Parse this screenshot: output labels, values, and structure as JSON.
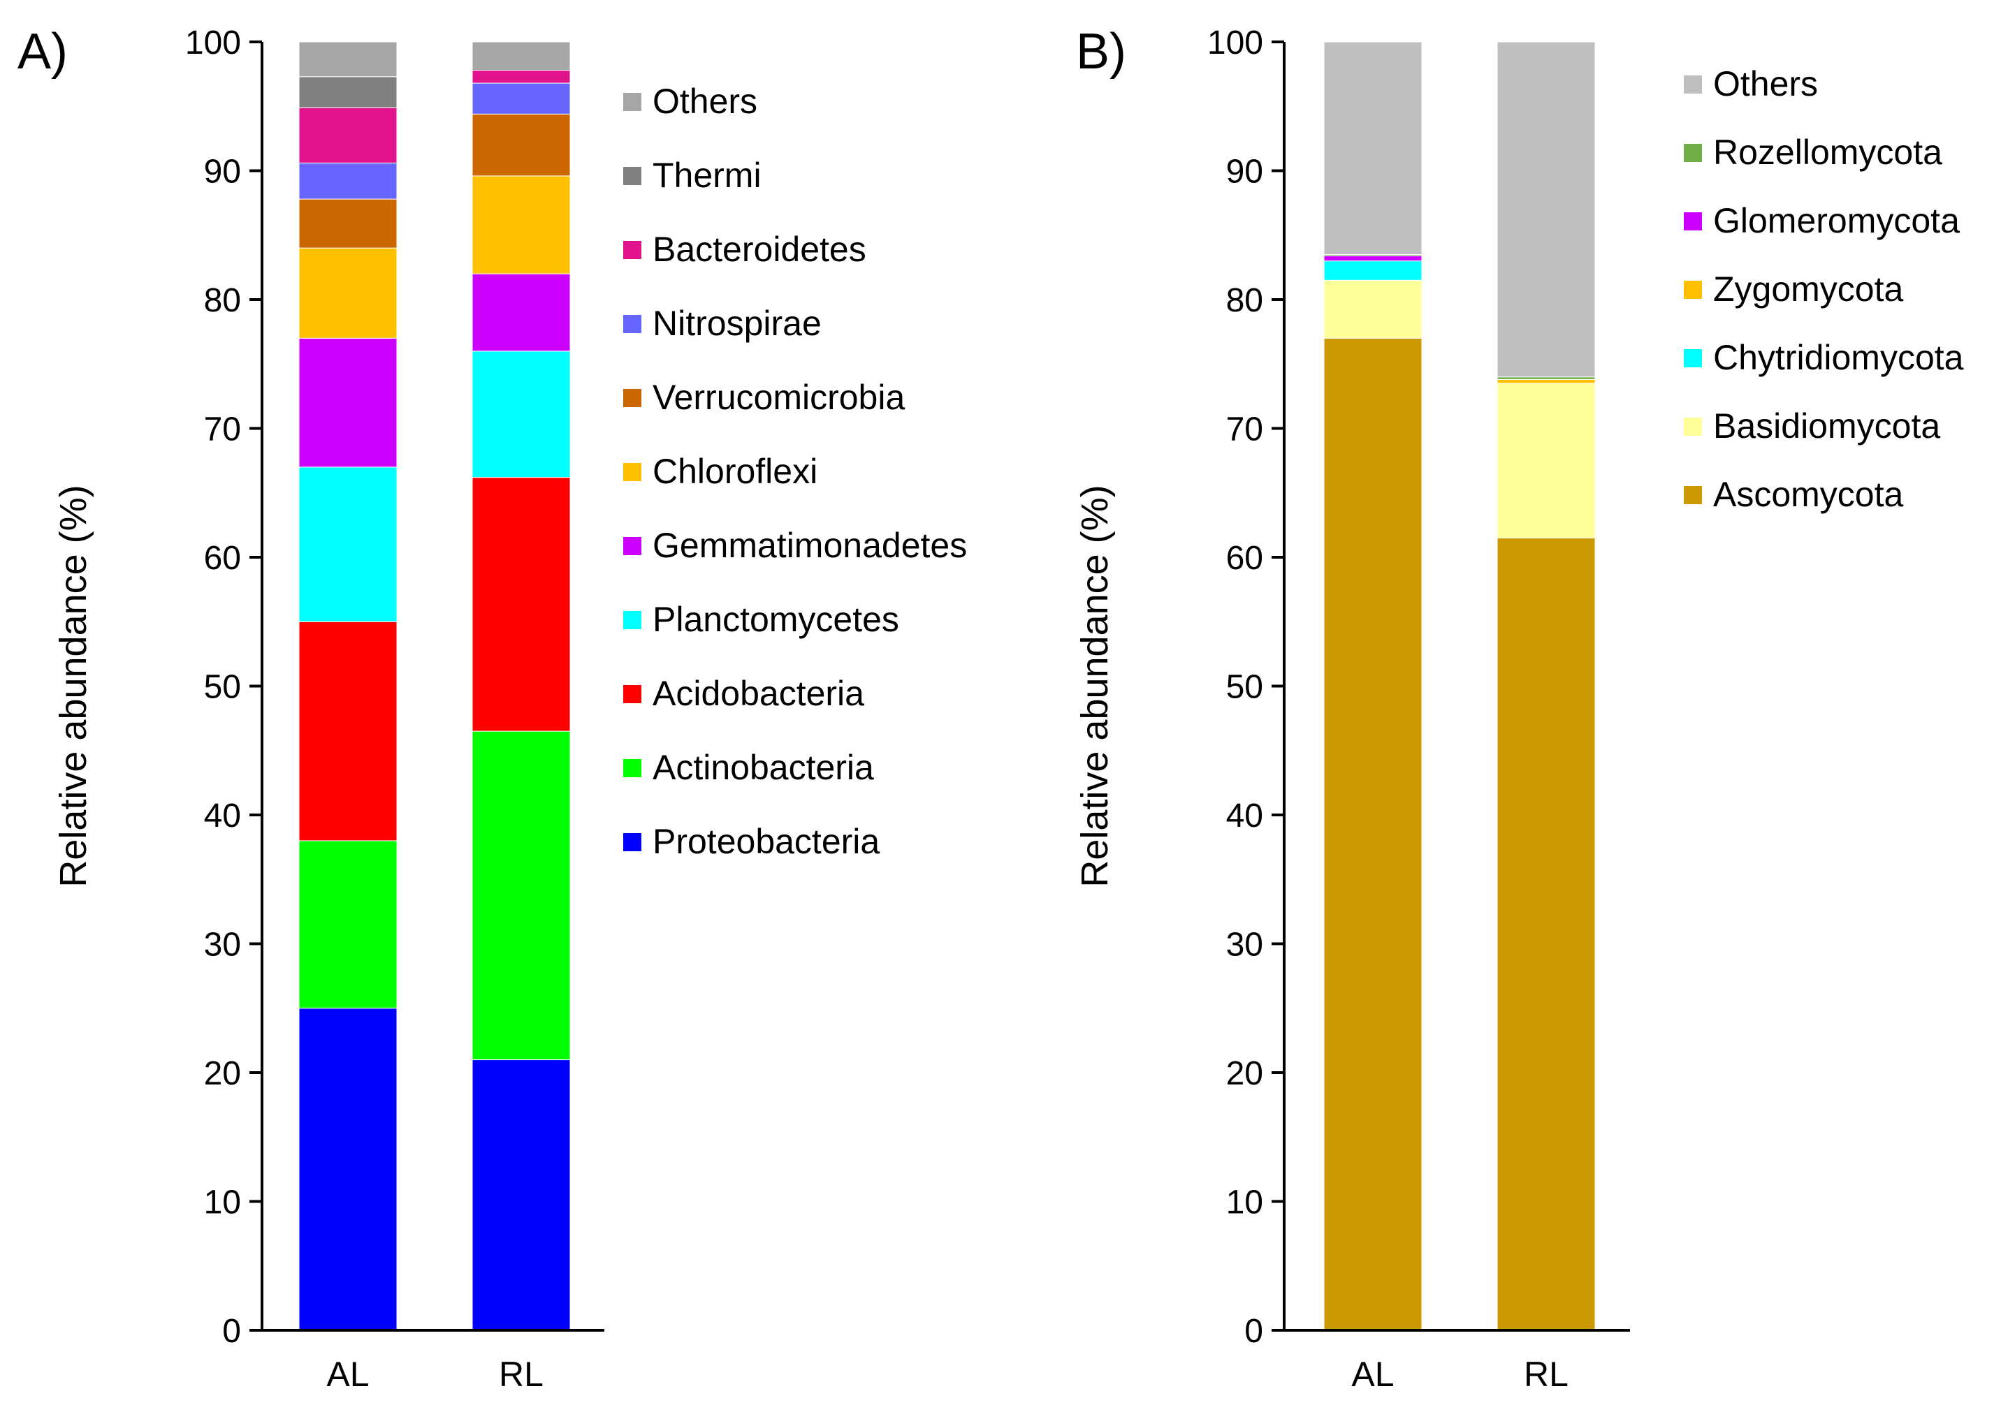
{
  "chart_data": [
    {
      "type": "bar",
      "stacked": true,
      "panel_label": "A)",
      "ylabel": "Relative abundance (%)",
      "xlabel": "",
      "ylim": [
        0,
        100
      ],
      "yticks": [
        "0",
        "10",
        "20",
        "30",
        "40",
        "50",
        "60",
        "70",
        "80",
        "90",
        "100"
      ],
      "categories": [
        "AL",
        "RL"
      ],
      "legend_placement": "right",
      "series": [
        {
          "name": "Proteobacteria",
          "color": "#0000ff",
          "values": [
            25.0,
            21.0
          ]
        },
        {
          "name": "Actinobacteria",
          "color": "#00ff00",
          "values": [
            13.0,
            25.5
          ]
        },
        {
          "name": "Acidobacteria",
          "color": "#ff0000",
          "values": [
            17.0,
            19.7
          ]
        },
        {
          "name": "Planctomycetes",
          "color": "#00ffff",
          "values": [
            12.0,
            9.8
          ]
        },
        {
          "name": "Gemmatimonadetes",
          "color": "#cc00ff",
          "values": [
            10.0,
            6.0
          ]
        },
        {
          "name": "Chloroflexi",
          "color": "#ffc000",
          "values": [
            7.0,
            7.6
          ]
        },
        {
          "name": "Verrucomicrobia",
          "color": "#cc6600",
          "values": [
            3.8,
            4.8
          ]
        },
        {
          "name": "Nitrospirae",
          "color": "#6666ff",
          "values": [
            2.8,
            2.4
          ]
        },
        {
          "name": "Bacteroidetes",
          "color": "#e0138c",
          "values": [
            4.3,
            1.0
          ]
        },
        {
          "name": "Thermi",
          "color": "#808080",
          "values": [
            2.4,
            0.0
          ]
        },
        {
          "name": "Others",
          "color": "#a6a6a6",
          "values": [
            2.7,
            2.2
          ]
        }
      ]
    },
    {
      "type": "bar",
      "stacked": true,
      "panel_label": "B)",
      "ylabel": "Relative abundance (%)",
      "xlabel": "",
      "ylim": [
        0,
        100
      ],
      "yticks": [
        "0",
        "10",
        "20",
        "30",
        "40",
        "50",
        "60",
        "70",
        "80",
        "90",
        "100"
      ],
      "categories": [
        "AL",
        "RL"
      ],
      "legend_placement": "right",
      "series": [
        {
          "name": "Ascomycota",
          "color": "#cc9900",
          "values": [
            77.0,
            61.5
          ]
        },
        {
          "name": "Basidiomycota",
          "color": "#ffff99",
          "values": [
            4.5,
            12.0
          ]
        },
        {
          "name": "Chytridiomycota",
          "color": "#00ffff",
          "values": [
            1.5,
            0.0
          ]
        },
        {
          "name": "Zygomycota",
          "color": "#ffc000",
          "values": [
            0.0,
            0.3
          ]
        },
        {
          "name": "Glomeromycota",
          "color": "#cc00ff",
          "values": [
            0.4,
            0.0
          ]
        },
        {
          "name": "Rozellomycota",
          "color": "#70ad47",
          "values": [
            0.1,
            0.2
          ]
        },
        {
          "name": "Others",
          "color": "#bfbfbf",
          "values": [
            16.5,
            26.0
          ]
        }
      ]
    }
  ]
}
